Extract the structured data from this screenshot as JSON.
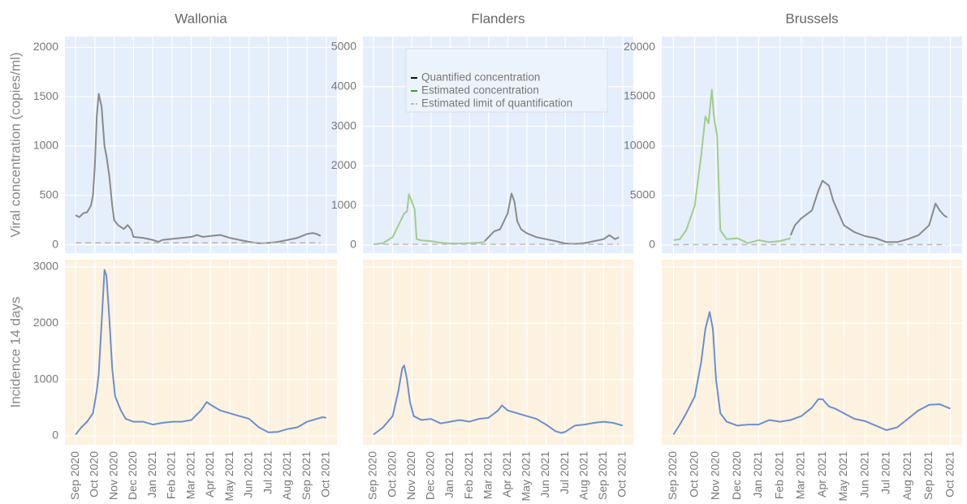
{
  "chart_data": [
    {
      "type": "line",
      "title": "Wallonia",
      "ylabel": "Viral concentration (copies/ml)",
      "xlim": [
        -0.55,
        13.55
      ],
      "xticks": [
        0,
        1,
        2,
        3,
        4,
        5,
        6,
        7,
        8,
        9,
        10,
        11,
        12,
        13
      ],
      "x_tick_labels": false,
      "ylim": [
        -85,
        2110
      ],
      "yticks": [
        0,
        500,
        1000,
        1500,
        2000
      ],
      "y_tick_labels": true,
      "grid": true,
      "background": "#e5eefb",
      "legend": false,
      "series": [
        {
          "name": "Quantified concentration",
          "color": "#8a8a8a",
          "legend_color": "#111111",
          "dash": false,
          "x": [
            0,
            0.2,
            0.4,
            0.6,
            0.8,
            0.9,
            1.0,
            1.1,
            1.2,
            1.35,
            1.5,
            1.6,
            1.75,
            1.9,
            2.0,
            2.2,
            2.5,
            2.7,
            2.9,
            3.0,
            3.5,
            4.0,
            4.3,
            4.5,
            5.0,
            5.5,
            6.0,
            6.3,
            6.6,
            7.0,
            7.5,
            8.0,
            8.5,
            9.0,
            9.5,
            10.0,
            10.5,
            11.0,
            11.5,
            12.0,
            12.3,
            12.5,
            12.7
          ],
          "values": [
            300,
            280,
            320,
            330,
            400,
            500,
            800,
            1300,
            1530,
            1400,
            1000,
            900,
            700,
            400,
            250,
            200,
            160,
            200,
            150,
            80,
            70,
            50,
            30,
            50,
            60,
            70,
            80,
            100,
            80,
            90,
            100,
            70,
            50,
            30,
            15,
            20,
            30,
            50,
            70,
            110,
            120,
            110,
            90
          ]
        },
        {
          "name": "Estimated limit of quantification",
          "color": "#bbbbbb",
          "legend_color": "#bbbbbb",
          "dash": true,
          "x": [
            0,
            12.7
          ],
          "values": [
            20,
            20
          ]
        }
      ]
    },
    {
      "type": "line",
      "title": "Flanders",
      "xlim": [
        -0.55,
        13.55
      ],
      "xticks": [
        0,
        1,
        2,
        3,
        4,
        5,
        6,
        7,
        8,
        9,
        10,
        11,
        12,
        13
      ],
      "x_tick_labels": false,
      "ylim": [
        -205,
        5265
      ],
      "yticks": [
        0,
        1000,
        2000,
        3000,
        4000,
        5000
      ],
      "y_tick_labels": true,
      "grid": true,
      "background": "#e5eefb",
      "legend": "top",
      "series": [
        {
          "name": "Quantified concentration",
          "color": "#8a8a8a",
          "legend_color": "#111111",
          "dash": false,
          "x": [
            5.8,
            6.0,
            6.3,
            6.6,
            7.0,
            7.2,
            7.35,
            7.5,
            7.7,
            8.0,
            8.5,
            9.0,
            9.5,
            10.0,
            10.5,
            11.0,
            11.5,
            12.0,
            12.3,
            12.6,
            12.8
          ],
          "values": [
            100,
            200,
            350,
            400,
            800,
            1300,
            1100,
            600,
            400,
            300,
            200,
            150,
            100,
            40,
            30,
            50,
            100,
            150,
            250,
            150,
            200
          ]
        },
        {
          "name": "Estimated concentration",
          "color": "#a2cc8c",
          "legend_color": "#3c9a2c",
          "dash": false,
          "x": [
            0,
            0.5,
            1.0,
            1.4,
            1.6,
            1.75,
            1.85,
            2.0,
            2.15,
            2.25,
            2.5,
            3.0,
            3.5,
            4.0,
            4.5,
            5.0,
            5.5,
            5.8
          ],
          "values": [
            20,
            50,
            200,
            600,
            800,
            850,
            1280,
            1100,
            900,
            150,
            120,
            100,
            60,
            40,
            40,
            50,
            60,
            80
          ]
        },
        {
          "name": "Estimated limit of quantification",
          "color": "#bbbbbb",
          "legend_color": "#bbbbbb",
          "dash": true,
          "x": [
            0,
            12.8
          ],
          "values": [
            20,
            20
          ]
        }
      ]
    },
    {
      "type": "line",
      "title": "Brussels",
      "xlim": [
        -0.55,
        13.55
      ],
      "xticks": [
        0,
        1,
        2,
        3,
        4,
        5,
        6,
        7,
        8,
        9,
        10,
        11,
        12,
        13
      ],
      "x_tick_labels": false,
      "ylim": [
        -820,
        21070
      ],
      "yticks": [
        0,
        5000,
        10000,
        15000,
        20000
      ],
      "y_tick_labels": true,
      "grid": true,
      "background": "#e5eefb",
      "legend": false,
      "series": [
        {
          "name": "Quantified concentration",
          "color": "#8a8a8a",
          "legend_color": "#111111",
          "dash": false,
          "x": [
            5.5,
            5.7,
            6.0,
            6.5,
            6.8,
            7.0,
            7.3,
            7.5,
            7.8,
            8.0,
            8.5,
            9.0,
            9.5,
            10.0,
            10.5,
            11.0,
            11.5,
            12.0,
            12.3,
            12.5,
            12.7,
            12.85
          ],
          "values": [
            1000,
            2000,
            2700,
            3500,
            5500,
            6500,
            6000,
            4500,
            3000,
            2000,
            1300,
            900,
            700,
            300,
            300,
            600,
            1000,
            2000,
            4200,
            3500,
            3000,
            2800
          ]
        },
        {
          "name": "Estimated concentration",
          "color": "#a2cc8c",
          "legend_color": "#3c9a2c",
          "dash": false,
          "x": [
            0,
            0.3,
            0.6,
            1.0,
            1.3,
            1.5,
            1.65,
            1.8,
            1.9,
            2.05,
            2.2,
            2.5,
            3.0,
            3.5,
            4.0,
            4.5,
            5.0,
            5.5
          ],
          "values": [
            500,
            600,
            1500,
            4000,
            9000,
            13000,
            12300,
            15700,
            13000,
            11000,
            1500,
            600,
            700,
            200,
            500,
            300,
            400,
            700
          ]
        },
        {
          "name": "Estimated limit of quantification",
          "color": "#bbbbbb",
          "legend_color": "#bbbbbb",
          "dash": true,
          "x": [
            0,
            12.85
          ],
          "values": [
            50,
            50
          ]
        }
      ]
    },
    {
      "type": "line",
      "ylabel": "Incidence 14 days",
      "color": "#6a8fd2",
      "xlim": [
        -0.55,
        13.55
      ],
      "x_tick_labels": true,
      "xticks": [
        {
          "value": 0,
          "label": "Sep 2020"
        },
        {
          "value": 1,
          "label": "Oct 2020"
        },
        {
          "value": 2,
          "label": "Nov 2020"
        },
        {
          "value": 3,
          "label": "Dec 2020"
        },
        {
          "value": 4,
          "label": "Jan 2021"
        },
        {
          "value": 5,
          "label": "Feb 2021"
        },
        {
          "value": 6,
          "label": "Mar 2021"
        },
        {
          "value": 7,
          "label": "Apr 2021"
        },
        {
          "value": 8,
          "label": "May 2021"
        },
        {
          "value": 9,
          "label": "Jun 2021"
        },
        {
          "value": 10,
          "label": "Jul 2021"
        },
        {
          "value": 11,
          "label": "Aug 2021"
        },
        {
          "value": 12,
          "label": "Sep 2021"
        },
        {
          "value": 13,
          "label": "Oct 2021"
        }
      ],
      "ylim": [
        -160,
        3130
      ],
      "yticks": [
        0,
        1000,
        2000,
        3000
      ],
      "y_tick_labels": true,
      "grid": true,
      "background": "#fdf2df",
      "x": [
        0,
        0.3,
        0.6,
        0.9,
        1.1,
        1.2,
        1.35,
        1.5,
        1.6,
        1.75,
        1.9,
        2.05,
        2.35,
        2.6,
        3.0,
        3.5,
        4.0,
        4.5,
        5.0,
        5.5,
        6.0,
        6.5,
        6.8,
        7.0,
        7.5,
        8.0,
        8.5,
        9.0,
        9.5,
        10.0,
        10.5,
        11.0,
        11.5,
        12.0,
        12.5,
        12.8,
        13.0
      ],
      "values": [
        20,
        150,
        250,
        400,
        800,
        1100,
        2000,
        2950,
        2850,
        2100,
        1200,
        700,
        450,
        300,
        250,
        250,
        200,
        230,
        250,
        250,
        280,
        450,
        600,
        550,
        450,
        400,
        350,
        300,
        150,
        60,
        70,
        120,
        150,
        250,
        300,
        330,
        320
      ]
    },
    {
      "type": "line",
      "color": "#6a8fd2",
      "xlim": [
        -0.55,
        13.55
      ],
      "x_tick_labels": true,
      "xticks": [
        {
          "value": 0,
          "label": "Sep 2020"
        },
        {
          "value": 1,
          "label": "Oct 2020"
        },
        {
          "value": 2,
          "label": "Nov 2020"
        },
        {
          "value": 3,
          "label": "Dec 2020"
        },
        {
          "value": 4,
          "label": "Jan 2021"
        },
        {
          "value": 5,
          "label": "Feb 2021"
        },
        {
          "value": 6,
          "label": "Mar 2021"
        },
        {
          "value": 7,
          "label": "Apr 2021"
        },
        {
          "value": 8,
          "label": "May 2021"
        },
        {
          "value": 9,
          "label": "Jun 2021"
        },
        {
          "value": 10,
          "label": "Jul 2021"
        },
        {
          "value": 11,
          "label": "Aug 2021"
        },
        {
          "value": 12,
          "label": "Sep 2021"
        },
        {
          "value": 13,
          "label": "Oct 2021"
        }
      ],
      "ylim": [
        -160,
        3130
      ],
      "yticks": [
        0,
        1000,
        2000,
        3000
      ],
      "y_tick_labels": false,
      "grid": true,
      "background": "#fdf2df",
      "x": [
        0,
        0.5,
        1.0,
        1.3,
        1.5,
        1.6,
        1.75,
        1.9,
        2.1,
        2.5,
        3.0,
        3.5,
        4.0,
        4.5,
        5.0,
        5.5,
        6.0,
        6.5,
        6.7,
        7.0,
        7.5,
        8.0,
        8.5,
        9.0,
        9.5,
        9.8,
        10.0,
        10.5,
        11.0,
        11.5,
        12.0,
        12.5,
        13.0
      ],
      "values": [
        20,
        150,
        350,
        800,
        1200,
        1250,
        1000,
        600,
        350,
        280,
        300,
        220,
        250,
        280,
        250,
        300,
        320,
        450,
        540,
        450,
        400,
        350,
        300,
        200,
        80,
        50,
        70,
        180,
        200,
        230,
        250,
        230,
        180
      ]
    },
    {
      "type": "line",
      "color": "#6a8fd2",
      "xlim": [
        -0.55,
        13.55
      ],
      "x_tick_labels": true,
      "xticks": [
        {
          "value": 0,
          "label": "Sep 2020"
        },
        {
          "value": 1,
          "label": "Oct 2020"
        },
        {
          "value": 2,
          "label": "Nov 2020"
        },
        {
          "value": 3,
          "label": "Dec 2020"
        },
        {
          "value": 4,
          "label": "Jan 2021"
        },
        {
          "value": 5,
          "label": "Feb 2021"
        },
        {
          "value": 6,
          "label": "Mar 2021"
        },
        {
          "value": 7,
          "label": "Apr 2021"
        },
        {
          "value": 8,
          "label": "May 2021"
        },
        {
          "value": 9,
          "label": "Jun 2021"
        },
        {
          "value": 10,
          "label": "Jul 2021"
        },
        {
          "value": 11,
          "label": "Aug 2021"
        },
        {
          "value": 12,
          "label": "Sep 2021"
        },
        {
          "value": 13,
          "label": "Oct 2021"
        }
      ],
      "ylim": [
        -160,
        3130
      ],
      "yticks": [
        0,
        1000,
        2000,
        3000
      ],
      "y_tick_labels": false,
      "grid": true,
      "background": "#fdf2df",
      "x": [
        0,
        0.3,
        0.6,
        1.0,
        1.3,
        1.5,
        1.7,
        1.85,
        2.0,
        2.2,
        2.5,
        3.0,
        3.5,
        4.0,
        4.5,
        5.0,
        5.5,
        6.0,
        6.5,
        6.8,
        7.0,
        7.3,
        7.6,
        8.0,
        8.5,
        9.0,
        9.5,
        10.0,
        10.5,
        11.0,
        11.5,
        12.0,
        12.5,
        13.0
      ],
      "values": [
        20,
        200,
        400,
        700,
        1300,
        1900,
        2200,
        1900,
        1000,
        400,
        250,
        180,
        200,
        200,
        280,
        250,
        280,
        350,
        500,
        650,
        650,
        520,
        480,
        400,
        300,
        260,
        180,
        100,
        150,
        300,
        450,
        550,
        560,
        480
      ]
    }
  ]
}
